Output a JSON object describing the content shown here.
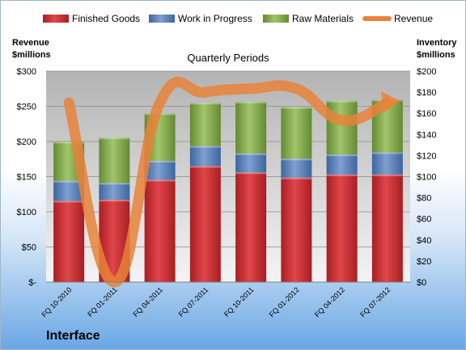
{
  "company": "Interface",
  "chart_data": {
    "type": "bar",
    "title": "Quarterly Periods",
    "left_axis_label": [
      "Revenue",
      "$millions"
    ],
    "right_axis_label": [
      "Inventory",
      "$millions"
    ],
    "categories": [
      "FQ 10-2010",
      "FQ 01-2011",
      "FQ 04-2011",
      "FQ 07-2011",
      "FQ 10-2011",
      "FQ 01-2012",
      "FQ 04-2012",
      "FQ 07-2012"
    ],
    "left_ticks": [
      "$-",
      "$50",
      "$100",
      "$150",
      "$200",
      "$250",
      "$300"
    ],
    "right_ticks": [
      "$0",
      "$20",
      "$40",
      "$60",
      "$80",
      "$100",
      "$120",
      "$140",
      "$160",
      "$180",
      "$200"
    ],
    "left_ylim": [
      0,
      300
    ],
    "right_ylim": [
      0,
      200
    ],
    "stacked": true,
    "series": [
      {
        "name": "Finished Goods",
        "color": "#c0282d",
        "axis": "right",
        "values": [
          77,
          78,
          97,
          110,
          104,
          99,
          102,
          102
        ]
      },
      {
        "name": "Work in Progress",
        "color": "#4a74b3",
        "axis": "right",
        "values": [
          19,
          16,
          18,
          19,
          18,
          18,
          19,
          21
        ]
      },
      {
        "name": "Raw Materials",
        "color": "#77a03e",
        "axis": "right",
        "values": [
          37,
          43,
          45,
          41,
          49,
          49,
          51,
          50
        ]
      }
    ],
    "line": {
      "name": "Revenue",
      "color": "#e8823a",
      "axis": "left",
      "values": [
        255,
        0,
        255,
        270,
        275,
        275,
        230,
        255
      ]
    },
    "grid": true,
    "legend": "top"
  }
}
